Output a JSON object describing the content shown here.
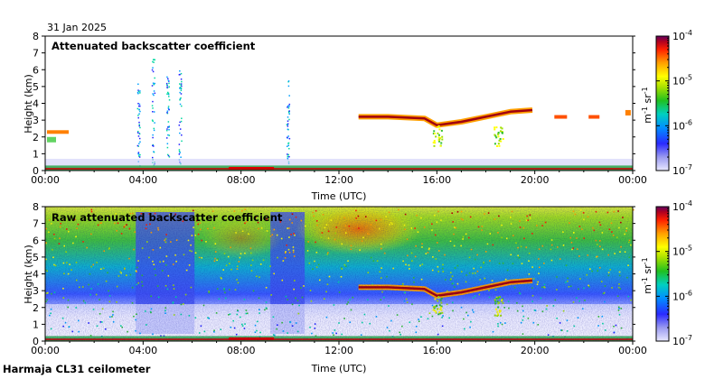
{
  "date_label": "31 Jan 2025",
  "footer_label": "Harmaja CL31 ceilometer",
  "colors": {
    "colormap": [
      "#d8d8ff",
      "#8a8ae6",
      "#2020ff",
      "#00a0ff",
      "#00d8a0",
      "#30c030",
      "#a0e000",
      "#ffff00",
      "#ffa000",
      "#ff2000",
      "#c00000",
      "#700070"
    ],
    "axis": "#000000",
    "background": "#ffffff"
  },
  "chart_data": [
    {
      "type": "heatmap",
      "title": "Attenuated backscatter coefficient",
      "xlabel": "Time (UTC)",
      "ylabel": "Height (km)",
      "x_ticks": [
        "00:00",
        "04:00",
        "08:00",
        "12:00",
        "16:00",
        "20:00",
        "00:00"
      ],
      "x_range_hours": [
        0,
        24
      ],
      "y_ticks": [
        "0",
        "1",
        "2",
        "3",
        "4",
        "5",
        "6",
        "7",
        "8"
      ],
      "y_range_km": [
        0,
        8
      ],
      "colorbar": {
        "labels": [
          "10",
          "10",
          "10",
          "10"
        ],
        "exponents": [
          "-4",
          "-5",
          "-6",
          "-7"
        ],
        "unit_base": [
          "m",
          "sr"
        ],
        "unit_exp": [
          "-1",
          "-1"
        ],
        "range": [
          1e-07,
          0.0001
        ],
        "scale": "log"
      },
      "features": {
        "cloud_layer_profile": [
          [
            12.8,
            3.2
          ],
          [
            14,
            3.2
          ],
          [
            15.5,
            3.1
          ],
          [
            16,
            2.7
          ],
          [
            17,
            2.9
          ],
          [
            18,
            3.2
          ],
          [
            19,
            3.5
          ],
          [
            19.9,
            3.6
          ]
        ],
        "rain_streak_hours": [
          3.8,
          4.4,
          5.0,
          5.5,
          9.9
        ],
        "surface_layer_top_km": 0.3
      }
    },
    {
      "type": "heatmap",
      "title": "Raw attenuated backscatter coefficient",
      "xlabel": "Time (UTC)",
      "ylabel": "Height (km)",
      "x_ticks": [
        "00:00",
        "04:00",
        "08:00",
        "12:00",
        "16:00",
        "20:00",
        "00:00"
      ],
      "x_range_hours": [
        0,
        24
      ],
      "y_ticks": [
        "0",
        "1",
        "2",
        "3",
        "4",
        "5",
        "6",
        "7",
        "8"
      ],
      "y_range_km": [
        0,
        8
      ],
      "colorbar": {
        "labels": [
          "10",
          "10",
          "10",
          "10"
        ],
        "exponents": [
          "-4",
          "-5",
          "-6",
          "-7"
        ],
        "unit_base": [
          "m",
          "sr"
        ],
        "unit_exp": [
          "-1",
          "-1"
        ],
        "range": [
          1e-07,
          0.0001
        ],
        "scale": "log"
      },
      "features": {
        "cloud_layer_profile": [
          [
            12.8,
            3.2
          ],
          [
            14,
            3.2
          ],
          [
            15.5,
            3.1
          ],
          [
            16,
            2.7
          ],
          [
            17,
            2.9
          ],
          [
            18,
            3.2
          ],
          [
            19,
            3.5
          ],
          [
            19.9,
            3.6
          ]
        ],
        "low_signal_block_hours": [
          [
            3.7,
            6.1
          ],
          [
            9.2,
            10.6
          ]
        ],
        "surface_layer_top_km": 0.3
      }
    }
  ]
}
